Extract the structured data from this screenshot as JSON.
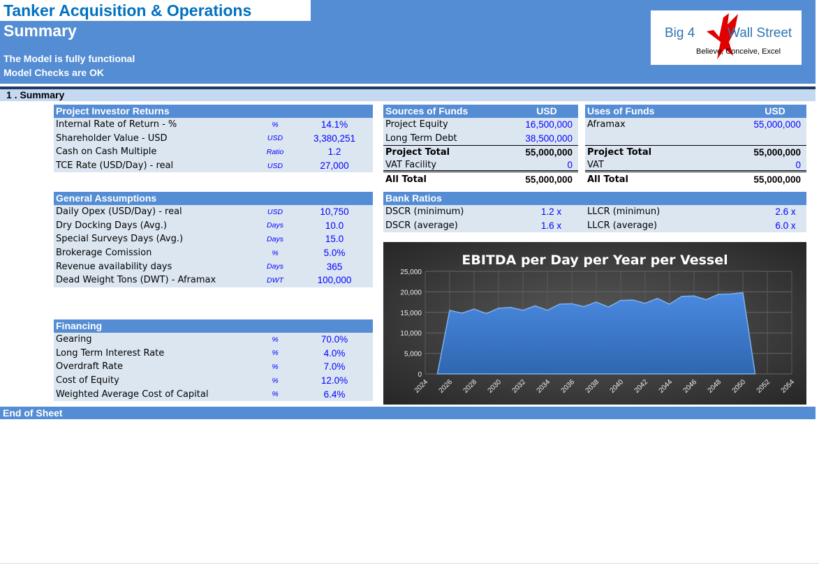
{
  "header": {
    "title": "Tanker Acquisition & Operations",
    "subtitle": "Summary",
    "status1": "The Model is fully functional",
    "status2": "Model Checks are OK"
  },
  "logo": {
    "left": "Big 4",
    "right": "Wall Street",
    "tagline": "Believe, Conceive, Excel",
    "icon": "eagle-icon"
  },
  "section": "1 . Summary",
  "investor_returns": {
    "title": "Project Investor Returns",
    "rows": [
      {
        "label": "Internal Rate of Return - %",
        "unit": "%",
        "value": "14.1%"
      },
      {
        "label": "Shareholder Value - USD",
        "unit": "USD",
        "value": "3,380,251"
      },
      {
        "label": "Cash on Cash Multiple",
        "unit": "Ratio",
        "value": "1.2"
      },
      {
        "label": "TCE Rate (USD/Day) - real",
        "unit": "USD",
        "value": "27,000"
      }
    ]
  },
  "assumptions": {
    "title": "General Assumptions",
    "rows": [
      {
        "label": "Daily Opex (USD/Day) - real",
        "unit": "USD",
        "value": "10,750"
      },
      {
        "label": "Dry Docking Days (Avg.)",
        "unit": "Days",
        "value": "10.0"
      },
      {
        "label": "Special Surveys Days (Avg.)",
        "unit": "Days",
        "value": "15.0"
      },
      {
        "label": "Brokerage Comission",
        "unit": "%",
        "value": "5.0%"
      },
      {
        "label": "Revenue availability days",
        "unit": "Days",
        "value": "365"
      },
      {
        "label": "Dead Weight Tons (DWT) - Aframax",
        "unit": "DWT",
        "value": "100,000"
      }
    ]
  },
  "financing": {
    "title": "Financing",
    "rows": [
      {
        "label": "Gearing",
        "unit": "%",
        "value": "70.0%"
      },
      {
        "label": "Long Term Interest Rate",
        "unit": "%",
        "value": "4.0%"
      },
      {
        "label": "Overdraft Rate",
        "unit": "%",
        "value": "7.0%"
      },
      {
        "label": "Cost of Equity",
        "unit": "%",
        "value": "12.0%"
      },
      {
        "label": "Weighted Average Cost of Capital",
        "unit": "%",
        "value": "6.4%"
      }
    ]
  },
  "sources": {
    "title": "Sources of Funds",
    "currency": "USD",
    "rows": [
      {
        "label": "Project Equity",
        "value": "16,500,000"
      },
      {
        "label": "Long Term Debt",
        "value": "38,500,000"
      },
      {
        "label": "Project Total",
        "value": "55,000,000"
      },
      {
        "label": "VAT Facility",
        "value": "0"
      },
      {
        "label": "All Total",
        "value": "55,000,000"
      }
    ]
  },
  "uses": {
    "title": "Uses of Funds",
    "currency": "USD",
    "rows": [
      {
        "label": "Aframax",
        "value": "55,000,000"
      },
      {
        "label": "",
        "value": ""
      },
      {
        "label": "Project Total",
        "value": "55,000,000"
      },
      {
        "label": "VAT",
        "value": "0"
      },
      {
        "label": "All Total",
        "value": "55,000,000"
      }
    ]
  },
  "bank_ratios": {
    "title": "Bank Ratios",
    "rows": [
      {
        "label": "DSCR (minimum)",
        "value": "1.2 x",
        "label2": "LLCR (minimun)",
        "value2": "2.6 x"
      },
      {
        "label": "DSCR (average)",
        "value": "1.6 x",
        "label2": "LLCR (average)",
        "value2": "6.0 x"
      }
    ]
  },
  "footer": "End of Sheet",
  "chart_data": {
    "type": "area",
    "title": "EBITDA per Day per Year per Vessel",
    "x": [
      2025,
      2026,
      2027,
      2028,
      2029,
      2030,
      2031,
      2032,
      2033,
      2034,
      2035,
      2036,
      2037,
      2038,
      2039,
      2040,
      2041,
      2042,
      2043,
      2044,
      2045,
      2046,
      2047,
      2048,
      2049,
      2050,
      2051
    ],
    "values": [
      0,
      15500,
      14800,
      15800,
      14700,
      16000,
      16200,
      15500,
      16600,
      15500,
      17000,
      17100,
      16400,
      17500,
      16300,
      17900,
      18000,
      17200,
      18400,
      17000,
      18900,
      19000,
      18100,
      19400,
      19500,
      19800,
      0
    ],
    "xlim": [
      2024,
      2054
    ],
    "ylim": [
      0,
      25000
    ],
    "yticks": [
      "0",
      "5,000",
      "10,000",
      "15,000",
      "20,000",
      "25,000"
    ],
    "xticks": [
      "2024",
      "2026",
      "2028",
      "2030",
      "2032",
      "2034",
      "2036",
      "2038",
      "2040",
      "2042",
      "2044",
      "2046",
      "2048",
      "2050",
      "2052",
      "2054"
    ],
    "grid": true,
    "color": "#3f7ed0"
  }
}
